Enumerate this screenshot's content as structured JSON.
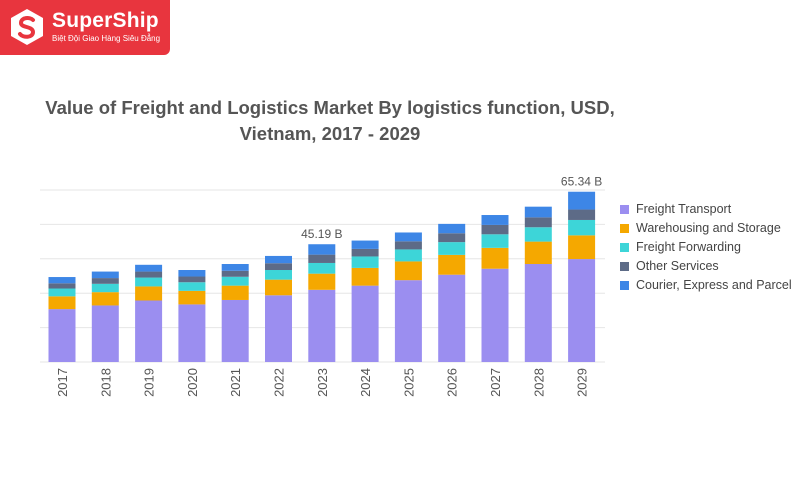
{
  "brand": {
    "name": "SuperShip",
    "tagline": "Biệt Đội Giao Hàng Siêu Đẳng",
    "color": "#e8353e"
  },
  "chart_data": {
    "type": "bar",
    "stacked": true,
    "title": "Value of Freight and Logistics Market By logistics function, USD, Vietnam, 2017 - 2029",
    "categories": [
      "2017",
      "2018",
      "2019",
      "2020",
      "2021",
      "2022",
      "2023",
      "2024",
      "2025",
      "2026",
      "2027",
      "2028",
      "2029"
    ],
    "series": [
      {
        "name": "Freight Transport",
        "color": "#9b8ef0",
        "values": [
          20.3,
          21.7,
          23.6,
          22.1,
          23.8,
          25.6,
          27.7,
          29.3,
          31.4,
          33.5,
          35.8,
          37.6,
          39.5
        ]
      },
      {
        "name": "Warehousing and Storage",
        "color": "#f5a800",
        "values": [
          4.9,
          5.1,
          5.4,
          5.2,
          5.5,
          6.0,
          6.2,
          6.8,
          7.2,
          7.6,
          8.0,
          8.6,
          9.1
        ]
      },
      {
        "name": "Freight Forwarding",
        "color": "#3dd5d8",
        "values": [
          3.0,
          3.2,
          3.4,
          3.3,
          3.4,
          3.7,
          4.1,
          4.4,
          4.6,
          4.9,
          5.2,
          5.5,
          5.9
        ]
      },
      {
        "name": "Other Services",
        "color": "#5d6b87",
        "values": [
          2.0,
          2.2,
          2.3,
          2.2,
          2.3,
          2.6,
          3.2,
          2.9,
          3.1,
          3.4,
          3.6,
          3.8,
          4.0
        ]
      },
      {
        "name": "Courier, Express and Parcel",
        "color": "#3d86e6",
        "values": [
          2.4,
          2.5,
          2.6,
          2.5,
          2.6,
          2.8,
          3.99,
          3.2,
          3.4,
          3.6,
          3.8,
          4.1,
          6.84
        ]
      }
    ],
    "annotations": [
      {
        "category": "2023",
        "label": "45.19 B"
      },
      {
        "category": "2029",
        "label": "65.34 B"
      }
    ],
    "ylim": [
      0,
      66
    ],
    "grid": true,
    "legend": "right",
    "xlabel": "",
    "ylabel": ""
  }
}
